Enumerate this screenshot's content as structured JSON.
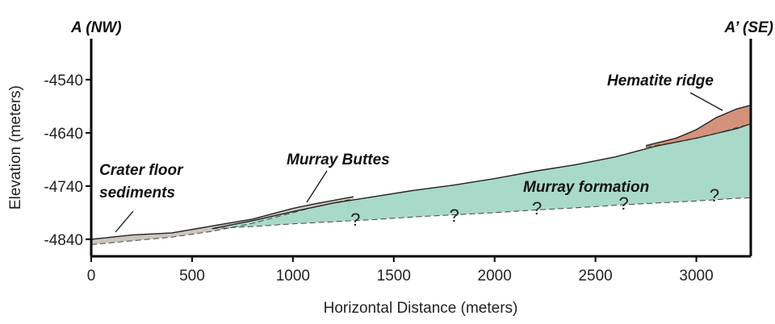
{
  "chart_data": {
    "type": "cross-section",
    "section_ends": [
      "A (NW)",
      "A’ (SE)"
    ],
    "x_label": "Horizontal Distance (meters)",
    "y_label": "Elevation (meters)",
    "xlim": [
      0,
      3270
    ],
    "ylim": [
      -4872,
      -4463
    ],
    "xticks": [
      0,
      500,
      1000,
      1500,
      2000,
      2500,
      3000
    ],
    "yticks": [
      -4540,
      -4640,
      -4740,
      -4840
    ],
    "layers": [
      {
        "name": "Crater floor sediments",
        "color": "#cbc6ba",
        "x": [
          0,
          200,
          400,
          600,
          800,
          1000,
          1100,
          1300
        ],
        "top": [
          -4840,
          -4832,
          -4828,
          -4815,
          -4802,
          -4782,
          -4774,
          -4760
        ],
        "bottom": [
          -4850,
          -4843,
          -4836,
          -4825,
          -4810,
          -4790,
          -4780,
          -4764
        ]
      },
      {
        "name": "Murray formation",
        "color": "#a9d9c9",
        "x": [
          600,
          800,
          1000,
          1200,
          1400,
          1600,
          1800,
          2000,
          2200,
          2400,
          2600,
          2800,
          3000,
          3200,
          3270
        ],
        "top": [
          -4820,
          -4805,
          -4788,
          -4772,
          -4760,
          -4748,
          -4738,
          -4726,
          -4712,
          -4700,
          -4685,
          -4665,
          -4650,
          -4632,
          -4623
        ],
        "bottom": [
          -4820,
          -4816,
          -4811,
          -4807,
          -4803,
          -4798,
          -4794,
          -4790,
          -4785,
          -4781,
          -4776,
          -4772,
          -4768,
          -4763,
          -4762
        ]
      },
      {
        "name": "Hematite ridge",
        "color": "#d4927c",
        "x": [
          2750,
          2900,
          3000,
          3100,
          3200,
          3270
        ],
        "top": [
          -4664,
          -4650,
          -4634,
          -4611,
          -4595,
          -4588
        ],
        "bottom": [
          -4667,
          -4657,
          -4650,
          -4641,
          -4630,
          -4623
        ]
      }
    ],
    "feature_label": "Murray Buttes",
    "uncertainty_marks": [
      "?",
      "?",
      "?",
      "?",
      "?"
    ]
  }
}
